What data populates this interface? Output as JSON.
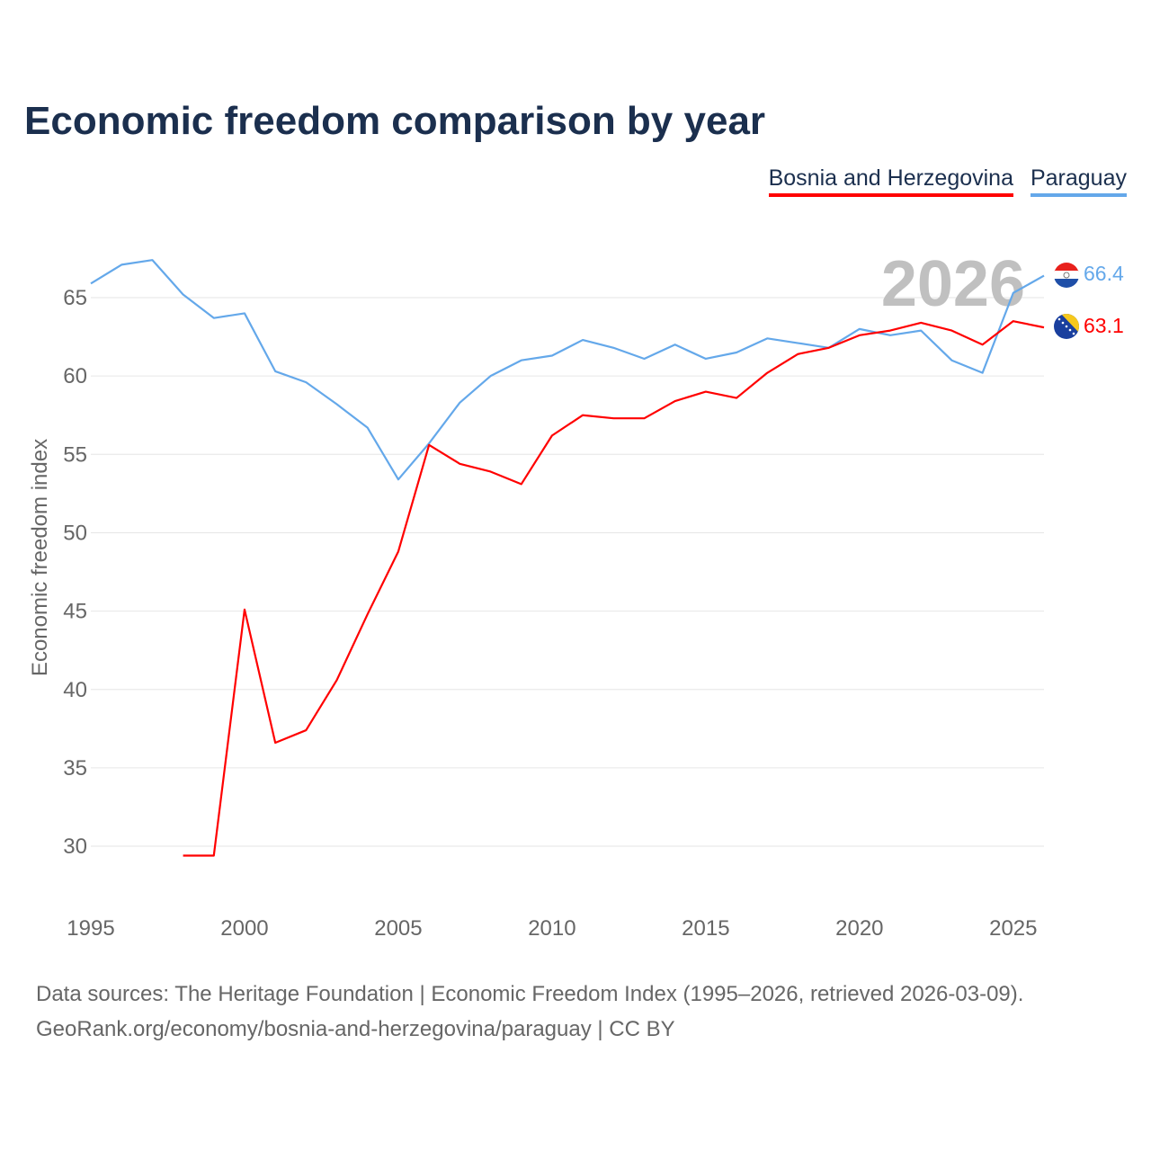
{
  "chart_data": {
    "type": "line",
    "title": "Economic freedom comparison by year",
    "xlabel": "",
    "ylabel": "Economic freedom index",
    "xlim": [
      1995,
      2026
    ],
    "ylim": [
      27,
      68
    ],
    "x_ticks": [
      1995,
      2000,
      2005,
      2010,
      2015,
      2020,
      2025
    ],
    "y_ticks": [
      30,
      35,
      40,
      45,
      50,
      55,
      60,
      65
    ],
    "grid": true,
    "legend_position": "top-right",
    "current_year_label": "2026",
    "series": [
      {
        "name": "Bosnia and Herzegovina",
        "color": "#ff0000",
        "end_label": "63.1",
        "x": [
          1998,
          1999,
          2000,
          2001,
          2002,
          2003,
          2004,
          2005,
          2006,
          2007,
          2008,
          2009,
          2010,
          2011,
          2012,
          2013,
          2014,
          2015,
          2016,
          2017,
          2018,
          2019,
          2020,
          2021,
          2022,
          2023,
          2024,
          2025,
          2026
        ],
        "values": [
          29.4,
          29.4,
          45.1,
          36.6,
          37.4,
          40.6,
          44.8,
          48.8,
          55.6,
          54.4,
          53.9,
          53.1,
          56.2,
          57.5,
          57.3,
          57.3,
          58.4,
          59.0,
          58.6,
          60.2,
          61.4,
          61.8,
          62.6,
          62.9,
          63.4,
          62.9,
          62.0,
          63.5,
          63.1
        ]
      },
      {
        "name": "Paraguay",
        "color": "#64a8ea",
        "end_label": "66.4",
        "x": [
          1995,
          1996,
          1997,
          1998,
          1999,
          2000,
          2001,
          2002,
          2003,
          2004,
          2005,
          2006,
          2007,
          2008,
          2009,
          2010,
          2011,
          2012,
          2013,
          2014,
          2015,
          2016,
          2017,
          2018,
          2019,
          2020,
          2021,
          2022,
          2023,
          2024,
          2025,
          2026
        ],
        "values": [
          65.9,
          67.1,
          67.4,
          65.2,
          63.7,
          64.0,
          60.3,
          59.6,
          58.2,
          56.7,
          53.4,
          55.7,
          58.3,
          60.0,
          61.0,
          61.3,
          62.3,
          61.8,
          61.1,
          62.0,
          61.1,
          61.5,
          62.4,
          62.1,
          61.8,
          63.0,
          62.6,
          62.9,
          61.0,
          60.2,
          65.3,
          66.4
        ]
      }
    ]
  },
  "footer": {
    "line1": "Data sources: The Heritage Foundation | Economic Freedom Index (1995–2026, retrieved 2026-03-09).",
    "line2": "GeoRank.org/economy/bosnia-and-herzegovina/paraguay | CC BY"
  }
}
